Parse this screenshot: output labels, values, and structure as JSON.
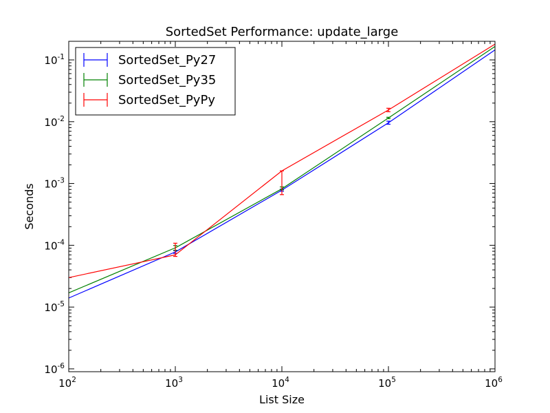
{
  "chart_data": {
    "type": "line",
    "title": "SortedSet Performance: update_large",
    "xlabel": "List Size",
    "ylabel": "Seconds",
    "xscale": "log",
    "yscale": "log",
    "xlim": [
      100,
      1000000
    ],
    "ylim": [
      9e-07,
      0.2
    ],
    "x_ticks": [
      {
        "value": 100,
        "base": "10",
        "exp": "2"
      },
      {
        "value": 1000,
        "base": "10",
        "exp": "3"
      },
      {
        "value": 10000,
        "base": "10",
        "exp": "4"
      },
      {
        "value": 100000,
        "base": "10",
        "exp": "5"
      },
      {
        "value": 1000000,
        "base": "10",
        "exp": "6"
      }
    ],
    "y_ticks": [
      {
        "value": 1e-06,
        "base": "10",
        "exp": "-6"
      },
      {
        "value": 1e-05,
        "base": "10",
        "exp": "-5"
      },
      {
        "value": 0.0001,
        "base": "10",
        "exp": "-4"
      },
      {
        "value": 0.001,
        "base": "10",
        "exp": "-3"
      },
      {
        "value": 0.01,
        "base": "10",
        "exp": "-2"
      },
      {
        "value": 0.1,
        "base": "10",
        "exp": "-1"
      }
    ],
    "x": [
      100,
      1000,
      10000,
      100000,
      1000000
    ],
    "legend_position": "upper-left",
    "series": [
      {
        "name": "SortedSet_Py27",
        "color": "#0000ff",
        "values": [
          1.4e-05,
          7.8e-05,
          0.00078,
          0.0096,
          0.145
        ],
        "errors": [
          null,
          [
            7.4e-05,
            8.2e-05
          ],
          [
            0.00075,
            0.00081
          ],
          [
            0.0091,
            0.0102
          ],
          null
        ]
      },
      {
        "name": "SortedSet_Py35",
        "color": "#008000",
        "values": [
          1.7e-05,
          9.1e-05,
          0.00082,
          0.0115,
          0.165
        ],
        "errors": [
          null,
          [
            8.3e-05,
            9.9e-05
          ],
          [
            0.00079,
            0.00088
          ],
          [
            0.0112,
            0.0118
          ],
          null
        ]
      },
      {
        "name": "SortedSet_PyPy",
        "color": "#ff0000",
        "values": [
          3e-05,
          7e-05,
          0.0016,
          0.0155,
          0.18
        ],
        "errors": [
          null,
          [
            6.6e-05,
            0.000108
          ],
          [
            0.00066,
            0.0016
          ],
          [
            0.0145,
            0.0165
          ],
          null
        ]
      }
    ]
  }
}
